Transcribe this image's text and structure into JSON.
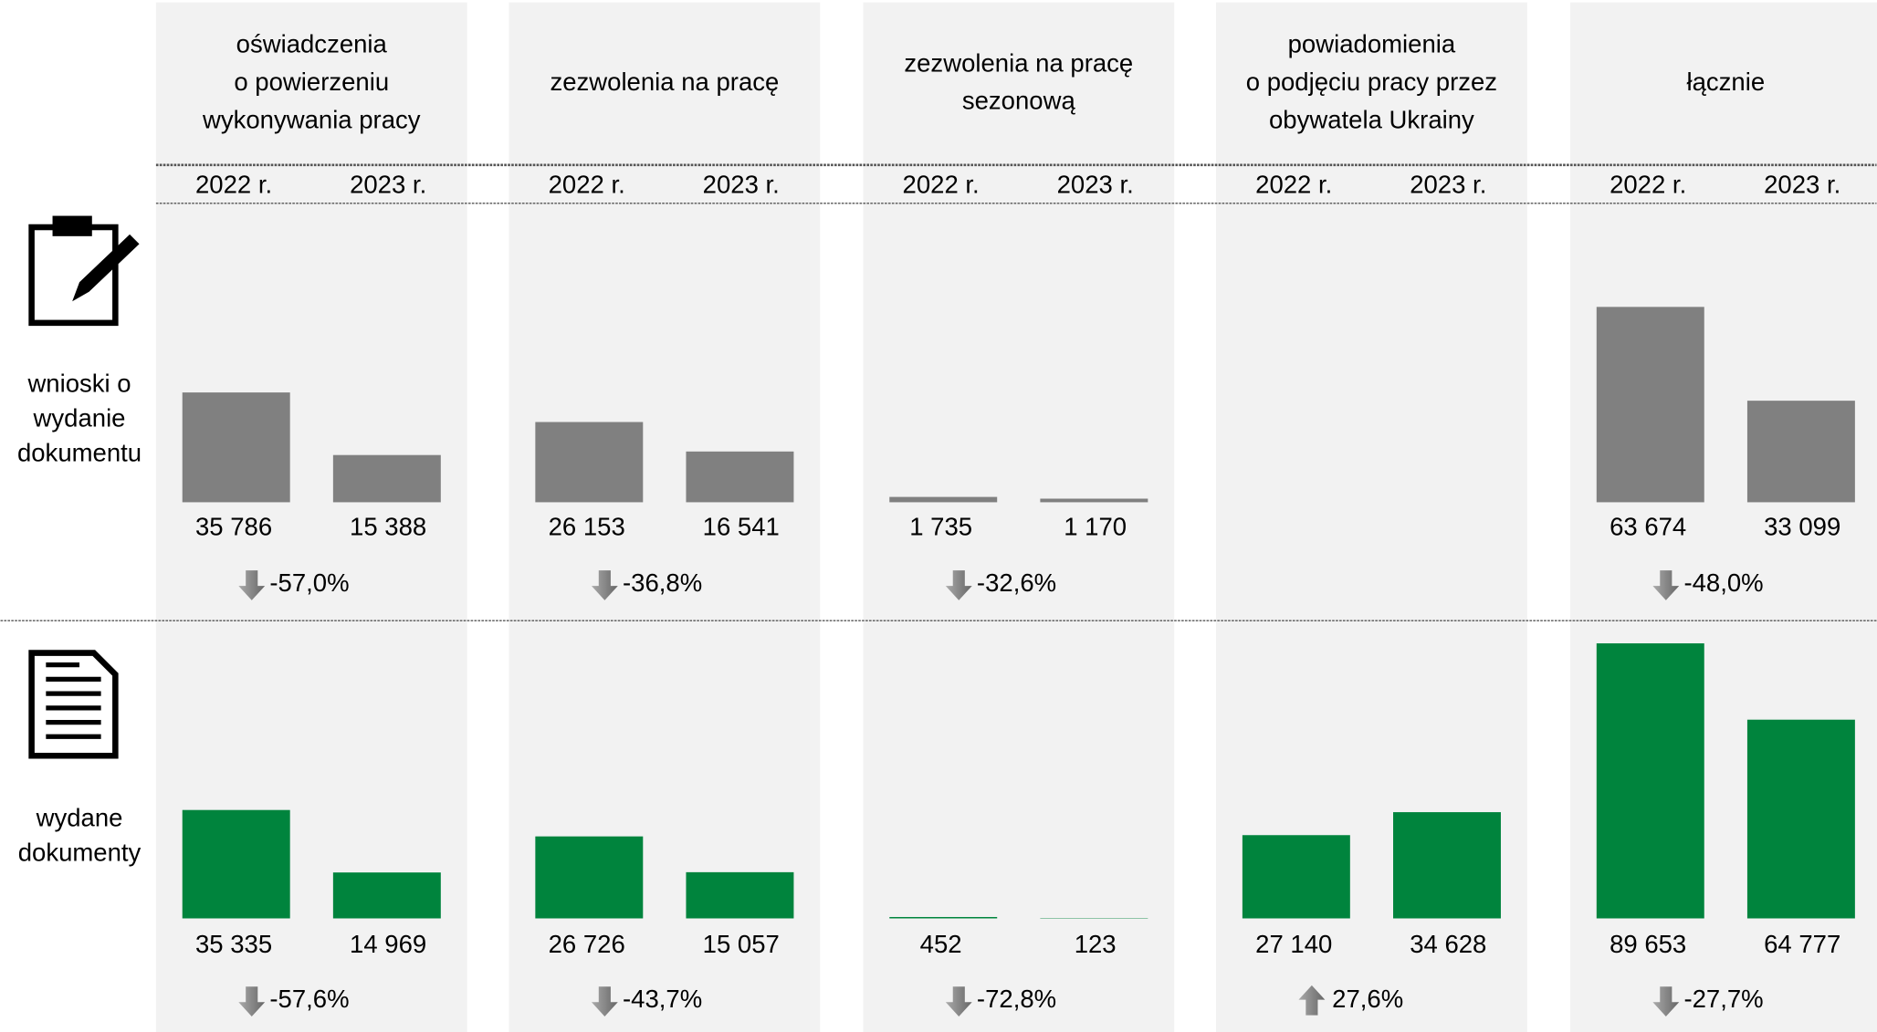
{
  "columns": [
    {
      "title_lines": [
        "oświadczenia",
        "o powierzeniu",
        "wykonywania pracy"
      ],
      "years": [
        "2022 r.",
        "2023 r."
      ]
    },
    {
      "title_lines": [
        "zezwolenia na pracę"
      ],
      "years": [
        "2022 r.",
        "2023 r."
      ]
    },
    {
      "title_lines": [
        "zezwolenia na pracę",
        "sezonową"
      ],
      "years": [
        "2022 r.",
        "2023 r."
      ]
    },
    {
      "title_lines": [
        "powiadomienia",
        "o podjęciu pracy przez",
        "obywatela Ukrainy"
      ],
      "years": [
        "2022 r.",
        "2023 r."
      ]
    },
    {
      "title_lines": [
        "łącznie"
      ],
      "years": [
        "2022 r.",
        "2023 r."
      ]
    }
  ],
  "rows": [
    {
      "label_lines": [
        "wnioski o",
        "wydanie",
        "dokumentu"
      ],
      "color": "#808080",
      "groups": [
        {
          "values": [
            35786,
            15388
          ],
          "value_labels": [
            "35 786",
            "15 388"
          ],
          "change": -57.0,
          "change_label": "-57,0%"
        },
        {
          "values": [
            26153,
            16541
          ],
          "value_labels": [
            "26 153",
            "16 541"
          ],
          "change": -36.8,
          "change_label": "-36,8%"
        },
        {
          "values": [
            1735,
            1170
          ],
          "value_labels": [
            "1 735",
            "1 170"
          ],
          "change": -32.6,
          "change_label": "-32,6%"
        },
        null,
        {
          "values": [
            63674,
            33099
          ],
          "value_labels": [
            "63 674",
            "33 099"
          ],
          "change": -48.0,
          "change_label": "-48,0%"
        }
      ]
    },
    {
      "label_lines": [
        "wydane",
        "dokumenty"
      ],
      "color": "#00843d",
      "groups": [
        {
          "values": [
            35335,
            14969
          ],
          "value_labels": [
            "35 335",
            "14 969"
          ],
          "change": -57.6,
          "change_label": "-57,6%"
        },
        {
          "values": [
            26726,
            15057
          ],
          "value_labels": [
            "26 726",
            "15 057"
          ],
          "change": -43.7,
          "change_label": "-43,7%"
        },
        {
          "values": [
            452,
            123
          ],
          "value_labels": [
            "452",
            "123"
          ],
          "change": -72.8,
          "change_label": "-72,8%"
        },
        {
          "values": [
            27140,
            34628
          ],
          "value_labels": [
            "27 140",
            "34 628"
          ],
          "change": 27.6,
          "change_label": "27,6%"
        },
        {
          "values": [
            89653,
            64777
          ],
          "value_labels": [
            "89 653",
            "64 777"
          ],
          "change": -27.7,
          "change_label": "-27,7%"
        }
      ]
    }
  ]
}
